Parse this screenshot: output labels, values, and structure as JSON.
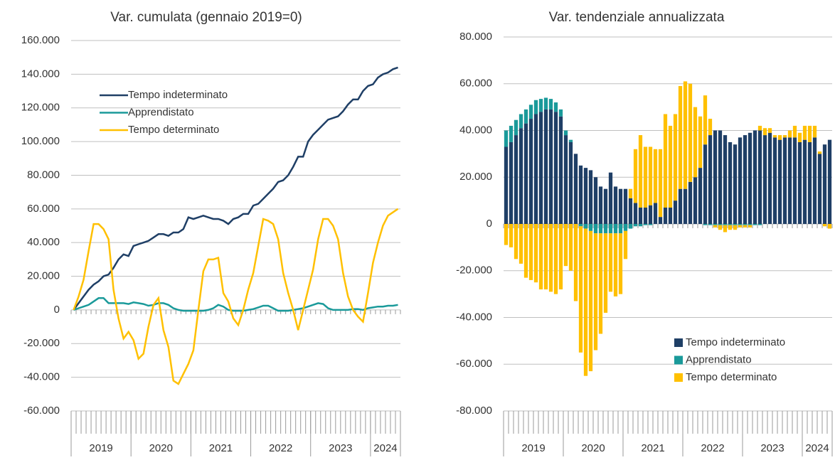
{
  "chart_data": [
    {
      "type": "line",
      "title": "Var. cumulata (gennaio 2019=0)",
      "categories": [
        "2019",
        null,
        null,
        null,
        null,
        null,
        null,
        null,
        null,
        null,
        null,
        null,
        "2020",
        null,
        null,
        null,
        null,
        null,
        null,
        null,
        null,
        null,
        null,
        null,
        "2021",
        null,
        null,
        null,
        null,
        null,
        null,
        null,
        null,
        null,
        null,
        null,
        "2022",
        null,
        null,
        null,
        null,
        null,
        null,
        null,
        null,
        null,
        null,
        null,
        "2023",
        null,
        null,
        null,
        null,
        null,
        null,
        null,
        null,
        null,
        null,
        null,
        "2024",
        null,
        null,
        null,
        null,
        null
      ],
      "ylim": [
        -60000,
        160000
      ],
      "yticks": [
        {
          "value": -60000,
          "label": "-60.000"
        },
        {
          "value": -40000,
          "label": "-40.000"
        },
        {
          "value": -20000,
          "label": "-20.000"
        },
        0,
        {
          "value": 20000,
          "label": "20.000"
        },
        {
          "value": 40000,
          "label": "40.000"
        },
        {
          "value": 60000,
          "label": "60.000"
        },
        {
          "value": 80000,
          "label": "80.000"
        },
        {
          "value": 100000,
          "label": "100.000"
        },
        {
          "value": 120000,
          "label": "120.000"
        },
        {
          "value": 140000,
          "label": "140.000"
        },
        {
          "value": 160000,
          "label": "160.000"
        }
      ],
      "grid": true,
      "legend": "upper left",
      "series": [
        {
          "name": "Tempo indeterminato",
          "color": "#1f3f66",
          "values": [
            0,
            4000,
            8000,
            12000,
            15000,
            17000,
            20000,
            21000,
            25000,
            30000,
            33000,
            32000,
            38000,
            39000,
            40000,
            41000,
            43000,
            45000,
            45000,
            44000,
            46000,
            46000,
            48000,
            55000,
            54000,
            55000,
            56000,
            55000,
            54000,
            54000,
            53000,
            51000,
            54000,
            55000,
            57000,
            57000,
            62000,
            63000,
            66000,
            69000,
            72000,
            76000,
            77000,
            80000,
            85000,
            91000,
            91000,
            100000,
            104000,
            107000,
            110000,
            113000,
            114000,
            115000,
            118000,
            122000,
            125000,
            125000,
            130000,
            133000,
            134000,
            138000,
            140000,
            141000,
            143000,
            144000
          ]
        },
        {
          "name": "Apprendistato",
          "color": "#1a9a9a",
          "values": [
            0,
            1000,
            2000,
            3000,
            5000,
            7000,
            7000,
            4000,
            4000,
            4000,
            4000,
            3500,
            4500,
            4000,
            3500,
            2500,
            3000,
            4000,
            4000,
            3000,
            1000,
            0,
            -500,
            -500,
            -500,
            -500,
            -500,
            0,
            1000,
            3000,
            2000,
            0,
            -500,
            -500,
            -500,
            0,
            500,
            1500,
            2500,
            2500,
            1000,
            -500,
            -500,
            -500,
            0,
            500,
            1000,
            2000,
            3000,
            4000,
            3500,
            1000,
            0,
            0,
            0,
            0,
            500,
            500,
            0,
            1000,
            1500,
            2000,
            2000,
            2500,
            2500,
            3000
          ]
        },
        {
          "name": "Tempo determinato",
          "color": "#ffc000",
          "values": [
            0,
            8000,
            18000,
            35000,
            51000,
            51000,
            48000,
            42000,
            12000,
            -5000,
            -17000,
            -13000,
            -18000,
            -29000,
            -26000,
            -10000,
            3000,
            7000,
            -12000,
            -22000,
            -42000,
            -44000,
            -38000,
            -32000,
            -24000,
            0,
            23000,
            30000,
            30000,
            31000,
            10000,
            5000,
            -5000,
            -9000,
            0,
            12000,
            22000,
            38000,
            54000,
            53000,
            51000,
            42000,
            22000,
            10000,
            0,
            -12000,
            0,
            12000,
            24000,
            42000,
            54000,
            54000,
            50000,
            42000,
            22000,
            8000,
            0,
            -4000,
            -7000,
            10000,
            28000,
            40000,
            50000,
            56000,
            58000,
            60000
          ]
        }
      ]
    },
    {
      "type": "stacked_bar",
      "title": "Var. tendenziale annualizzata",
      "categories": [
        "2019",
        null,
        null,
        null,
        null,
        null,
        null,
        null,
        null,
        null,
        null,
        null,
        "2020",
        null,
        null,
        null,
        null,
        null,
        null,
        null,
        null,
        null,
        null,
        null,
        "2021",
        null,
        null,
        null,
        null,
        null,
        null,
        null,
        null,
        null,
        null,
        null,
        "2022",
        null,
        null,
        null,
        null,
        null,
        null,
        null,
        null,
        null,
        null,
        null,
        "2023",
        null,
        null,
        null,
        null,
        null,
        null,
        null,
        null,
        null,
        null,
        null,
        "2024",
        null,
        null,
        null,
        null,
        null
      ],
      "ylim": [
        -80000,
        80000
      ],
      "yticks": [
        {
          "value": -80000,
          "label": "-80.000"
        },
        {
          "value": -60000,
          "label": "-60.000"
        },
        {
          "value": -40000,
          "label": "-40.000"
        },
        {
          "value": -20000,
          "label": "-20.000"
        },
        0,
        {
          "value": 20000,
          "label": "20.000"
        },
        {
          "value": 40000,
          "label": "40.000"
        },
        {
          "value": 60000,
          "label": "60.000"
        },
        {
          "value": 80000,
          "label": "80.000"
        }
      ],
      "grid": true,
      "legend": "lower right",
      "series": [
        {
          "name": "Tempo indeterminato",
          "color": "#1f3f66",
          "values": [
            33000,
            35000,
            38000,
            41000,
            43000,
            45000,
            47000,
            48000,
            49000,
            49000,
            48000,
            46000,
            38000,
            35000,
            30000,
            25000,
            24000,
            23000,
            20000,
            16000,
            15000,
            22000,
            16000,
            15000,
            15000,
            11000,
            9000,
            7000,
            7000,
            8000,
            9000,
            3000,
            7000,
            7000,
            10000,
            15000,
            15000,
            18000,
            20000,
            24000,
            34000,
            38000,
            40000,
            40000,
            38000,
            35000,
            34000,
            37000,
            38000,
            39000,
            40000,
            40000,
            38000,
            39000,
            37000,
            36000,
            37000,
            37000,
            37000,
            35000,
            36000,
            35000,
            37000,
            30000,
            34000,
            36000
          ]
        },
        {
          "name": "Apprendistato",
          "color": "#1a9a9a",
          "values": [
            7000,
            7000,
            6500,
            6000,
            6000,
            6000,
            6000,
            5500,
            5000,
            4500,
            4000,
            3000,
            2000,
            1000,
            0,
            -1000,
            -2000,
            -3000,
            -4000,
            -4000,
            -4000,
            -4000,
            -4000,
            -4000,
            -3000,
            -2000,
            -1000,
            -1000,
            -500,
            -500,
            0,
            0,
            0,
            0,
            0,
            0,
            0,
            0,
            0,
            0,
            -500,
            -500,
            -500,
            -500,
            -500,
            -500,
            -500,
            -500,
            -500,
            -500,
            -500,
            -500,
            0,
            0,
            0,
            0,
            0,
            0,
            0,
            0,
            0,
            0,
            0,
            0,
            0,
            0
          ]
        },
        {
          "name": "Tempo determinato",
          "color": "#ffc000",
          "values": [
            -9000,
            -10000,
            -15000,
            -17000,
            -23000,
            -24000,
            -25000,
            -28000,
            -28000,
            -29000,
            -30000,
            -28000,
            -18000,
            -20000,
            -33000,
            -54000,
            -63000,
            -60000,
            -50000,
            -43000,
            -34000,
            -25000,
            -27000,
            -26000,
            -12000,
            4000,
            23000,
            31000,
            26000,
            25000,
            23000,
            29000,
            40000,
            35000,
            37000,
            44000,
            46000,
            42000,
            30000,
            22000,
            21000,
            7000,
            -1000,
            -2000,
            -3000,
            -2000,
            -2000,
            -1000,
            -1000,
            -1000,
            0,
            2000,
            3000,
            2000,
            1000,
            2000,
            1000,
            3000,
            5000,
            4000,
            6000,
            7000,
            5000,
            1000,
            -1000,
            -2000
          ]
        }
      ]
    }
  ]
}
